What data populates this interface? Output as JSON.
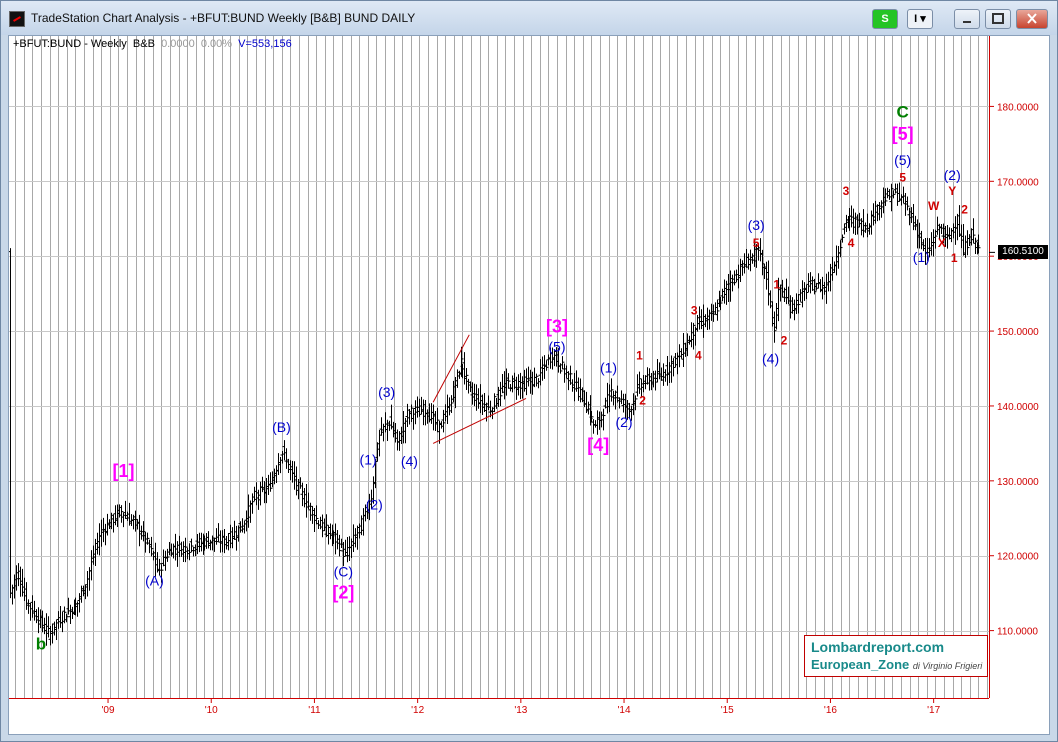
{
  "window": {
    "title": "TradeStation Chart Analysis - +BFUT:BUND Weekly [B&B] BUND DAILY",
    "s_button": "S",
    "i_button": "I",
    "icon": "tradestation-app-icon"
  },
  "header": {
    "symbol": "+BFUT:BUND - Weekly",
    "style": "B&B",
    "change": "0.0000",
    "change_pct": "0.00%",
    "volume": "V=553,156"
  },
  "last_price": "160.5100",
  "watermark": {
    "line1": "Lombardreport.com",
    "line2": "European_Zone",
    "author": "di Virginio Frigieri"
  },
  "colors": {
    "bars": "#000000",
    "grid": "#aaaaaa",
    "axis": "#d00000",
    "label_blue": "#0000cc",
    "label_red": "#d00000",
    "label_magenta": "#ff00ff",
    "label_green": "#007f00"
  },
  "chart_data": {
    "type": "ohlc",
    "instrument": "+BFUT:BUND",
    "timeframe": "Weekly",
    "x_range": [
      2008.05,
      2017.6
    ],
    "ylim": [
      101,
      187
    ],
    "y_ticks": [
      110,
      120,
      130,
      140,
      150,
      160,
      170,
      180
    ],
    "y_tick_labels": [
      "110.0000",
      "120.0000",
      "130.0000",
      "140.0000",
      "150.0000",
      "160.0000",
      "170.0000",
      "180.0000"
    ],
    "x_tick_labels": [
      {
        "label": "'09",
        "x": 2009
      },
      {
        "label": "'10",
        "x": 2010
      },
      {
        "label": "'11",
        "x": 2011
      },
      {
        "label": "'12",
        "x": 2012
      },
      {
        "label": "'13",
        "x": 2013
      },
      {
        "label": "'14",
        "x": 2014
      },
      {
        "label": "'15",
        "x": 2015
      },
      {
        "label": "'16",
        "x": 2016
      },
      {
        "label": "'17",
        "x": 2017
      }
    ],
    "grid": true,
    "last_price": 160.51,
    "price_path": [
      [
        2008.05,
        115
      ],
      [
        2008.12,
        118
      ],
      [
        2008.2,
        114
      ],
      [
        2008.3,
        112
      ],
      [
        2008.42,
        109.5
      ],
      [
        2008.55,
        112
      ],
      [
        2008.7,
        113.5
      ],
      [
        2008.8,
        117
      ],
      [
        2008.92,
        123
      ],
      [
        2009.12,
        126
      ],
      [
        2009.28,
        124
      ],
      [
        2009.4,
        121
      ],
      [
        2009.48,
        118
      ],
      [
        2009.6,
        121
      ],
      [
        2009.75,
        121
      ],
      [
        2009.95,
        122
      ],
      [
        2010.15,
        122
      ],
      [
        2010.3,
        124
      ],
      [
        2010.42,
        128
      ],
      [
        2010.55,
        129
      ],
      [
        2010.68,
        134
      ],
      [
        2010.8,
        130
      ],
      [
        2010.92,
        127
      ],
      [
        2011.05,
        124
      ],
      [
        2011.22,
        122
      ],
      [
        2011.3,
        120
      ],
      [
        2011.45,
        124
      ],
      [
        2011.55,
        128
      ],
      [
        2011.62,
        136
      ],
      [
        2011.72,
        138
      ],
      [
        2011.8,
        135
      ],
      [
        2011.9,
        139
      ],
      [
        2012.08,
        139.5
      ],
      [
        2012.2,
        137
      ],
      [
        2012.3,
        140
      ],
      [
        2012.42,
        146
      ],
      [
        2012.5,
        142
      ],
      [
        2012.7,
        139.5
      ],
      [
        2012.85,
        143
      ],
      [
        2013.0,
        143
      ],
      [
        2013.15,
        143.5
      ],
      [
        2013.3,
        147
      ],
      [
        2013.45,
        144
      ],
      [
        2013.6,
        141
      ],
      [
        2013.72,
        137
      ],
      [
        2013.88,
        142
      ],
      [
        2014.05,
        139.5
      ],
      [
        2014.15,
        143
      ],
      [
        2014.35,
        144
      ],
      [
        2014.55,
        147
      ],
      [
        2014.7,
        151
      ],
      [
        2014.85,
        152
      ],
      [
        2015.0,
        156
      ],
      [
        2015.2,
        159.5
      ],
      [
        2015.3,
        160.5
      ],
      [
        2015.38,
        157
      ],
      [
        2015.45,
        150
      ],
      [
        2015.5,
        156
      ],
      [
        2015.62,
        153
      ],
      [
        2015.78,
        156
      ],
      [
        2015.95,
        156
      ],
      [
        2016.05,
        160
      ],
      [
        2016.15,
        165
      ],
      [
        2016.35,
        164
      ],
      [
        2016.5,
        167.5
      ],
      [
        2016.62,
        168.5
      ],
      [
        2016.72,
        167
      ],
      [
        2016.82,
        164
      ],
      [
        2016.92,
        160
      ],
      [
        2017.05,
        164
      ],
      [
        2017.12,
        162
      ],
      [
        2017.22,
        165
      ],
      [
        2017.28,
        160.5
      ],
      [
        2017.35,
        163
      ],
      [
        2017.45,
        160.51
      ]
    ],
    "trendlines": [
      {
        "from": [
          2012.15,
          140.5
        ],
        "to": [
          2012.5,
          149.5
        ]
      },
      {
        "from": [
          2012.15,
          135
        ],
        "to": [
          2013.05,
          141
        ]
      }
    ],
    "annotations": [
      {
        "text": "b",
        "x": 2008.35,
        "y": 107.5,
        "color": "green"
      },
      {
        "text": "[1]",
        "x": 2009.15,
        "y": 130.5,
        "color": "magenta"
      },
      {
        "text": "(A)",
        "x": 2009.45,
        "y": 116,
        "color": "blue"
      },
      {
        "text": "(B)",
        "x": 2010.68,
        "y": 136.5,
        "color": "blue"
      },
      {
        "text": "(C)",
        "x": 2011.28,
        "y": 117.2,
        "color": "blue"
      },
      {
        "text": "[2]",
        "x": 2011.28,
        "y": 114.3,
        "color": "magenta"
      },
      {
        "text": "(1)",
        "x": 2011.52,
        "y": 132.2,
        "color": "blue"
      },
      {
        "text": "(2)",
        "x": 2011.58,
        "y": 126.2,
        "color": "blue"
      },
      {
        "text": "(3)",
        "x": 2011.7,
        "y": 141.2,
        "color": "blue"
      },
      {
        "text": "(4)",
        "x": 2011.92,
        "y": 132,
        "color": "blue"
      },
      {
        "text": "[3]",
        "x": 2013.35,
        "y": 149.8,
        "color": "magenta"
      },
      {
        "text": "(5)",
        "x": 2013.35,
        "y": 147.3,
        "color": "blue"
      },
      {
        "text": "[4]",
        "x": 2013.75,
        "y": 134,
        "color": "magenta"
      },
      {
        "text": "(1)",
        "x": 2013.85,
        "y": 144.5,
        "color": "blue"
      },
      {
        "text": "(2)",
        "x": 2014.0,
        "y": 137.2,
        "color": "blue"
      },
      {
        "text": "1",
        "x": 2014.15,
        "y": 146.2,
        "color": "red"
      },
      {
        "text": "2",
        "x": 2014.18,
        "y": 140.2,
        "color": "red"
      },
      {
        "text": "3",
        "x": 2014.68,
        "y": 152.2,
        "color": "red"
      },
      {
        "text": "4",
        "x": 2014.72,
        "y": 146.2,
        "color": "red"
      },
      {
        "text": "(3)",
        "x": 2015.28,
        "y": 163.5,
        "color": "blue"
      },
      {
        "text": "5",
        "x": 2015.28,
        "y": 161.2,
        "color": "red"
      },
      {
        "text": "1",
        "x": 2015.48,
        "y": 155.7,
        "color": "red"
      },
      {
        "text": "2",
        "x": 2015.55,
        "y": 148.2,
        "color": "red"
      },
      {
        "text": "(4)",
        "x": 2015.42,
        "y": 145.7,
        "color": "blue"
      },
      {
        "text": "3",
        "x": 2016.15,
        "y": 168.2,
        "color": "red"
      },
      {
        "text": "4",
        "x": 2016.2,
        "y": 161.2,
        "color": "red"
      },
      {
        "text": "C",
        "x": 2016.7,
        "y": 178.5,
        "color": "green"
      },
      {
        "text": "[5]",
        "x": 2016.7,
        "y": 175.5,
        "color": "magenta"
      },
      {
        "text": "(5)",
        "x": 2016.7,
        "y": 172.2,
        "color": "blue"
      },
      {
        "text": "5",
        "x": 2016.7,
        "y": 170,
        "color": "red"
      },
      {
        "text": "(1)",
        "x": 2016.88,
        "y": 159.2,
        "color": "blue"
      },
      {
        "text": "W",
        "x": 2017.0,
        "y": 166.2,
        "color": "red"
      },
      {
        "text": "X",
        "x": 2017.08,
        "y": 161.2,
        "color": "red"
      },
      {
        "text": "(2)",
        "x": 2017.18,
        "y": 170.2,
        "color": "blue"
      },
      {
        "text": "Y",
        "x": 2017.18,
        "y": 168.2,
        "color": "red"
      },
      {
        "text": "2",
        "x": 2017.3,
        "y": 165.7,
        "color": "red"
      },
      {
        "text": "1",
        "x": 2017.2,
        "y": 159.2,
        "color": "red"
      }
    ]
  }
}
